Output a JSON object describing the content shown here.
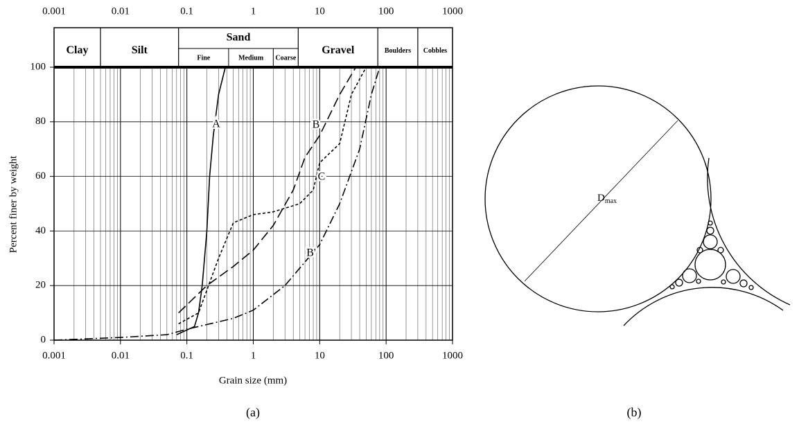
{
  "chart_data": {
    "type": "line",
    "xscale": "log",
    "xlabel": "Grain size (mm)",
    "ylabel": "Percent finer by weight",
    "xlim": [
      0.001,
      1000
    ],
    "xticks": [
      0.001,
      0.01,
      0.1,
      1,
      10,
      100,
      1000
    ],
    "ylim": [
      0,
      100
    ],
    "yticks": [
      0,
      20,
      40,
      60,
      80,
      100
    ],
    "grid": true,
    "minor_grid": true,
    "classes": [
      "Clay",
      "Silt",
      "Sand",
      "Gravel",
      "Boulders",
      "Cobbles"
    ],
    "sand_subclasses": [
      "Fine",
      "Medium",
      "Coarse"
    ],
    "series": [
      {
        "name": "A",
        "color": "#000000",
        "style": "solid",
        "x": [
          0.07,
          0.13,
          0.15,
          0.17,
          0.2,
          0.22,
          0.25,
          0.3,
          0.38
        ],
        "values": [
          2,
          5,
          10,
          20,
          40,
          60,
          75,
          90,
          100
        ]
      },
      {
        "name": "B",
        "color": "#000000",
        "style": "long-dash",
        "x": [
          0.075,
          0.2,
          0.5,
          1,
          2,
          4,
          6,
          10,
          20,
          35
        ],
        "values": [
          10,
          20,
          27,
          33,
          42,
          55,
          67,
          75,
          90,
          100
        ]
      },
      {
        "name": "C",
        "color": "#000000",
        "style": "short-dash",
        "x": [
          0.075,
          0.15,
          0.3,
          0.5,
          1,
          2,
          5,
          8,
          10,
          20,
          30,
          50
        ],
        "values": [
          6,
          10,
          30,
          43,
          46,
          47,
          50,
          55,
          65,
          72,
          90,
          100
        ]
      },
      {
        "name": "B'",
        "color": "#000000",
        "style": "dash-dot",
        "x": [
          0.001,
          0.01,
          0.05,
          0.1,
          0.5,
          1,
          3,
          10,
          20,
          40,
          60,
          80
        ],
        "values": [
          0,
          1,
          2,
          4,
          8,
          11,
          20,
          35,
          50,
          70,
          90,
          100
        ]
      }
    ]
  },
  "diagram": {
    "label": "D",
    "label_subscript": "max"
  },
  "captions": [
    "(a)",
    "(b)"
  ]
}
